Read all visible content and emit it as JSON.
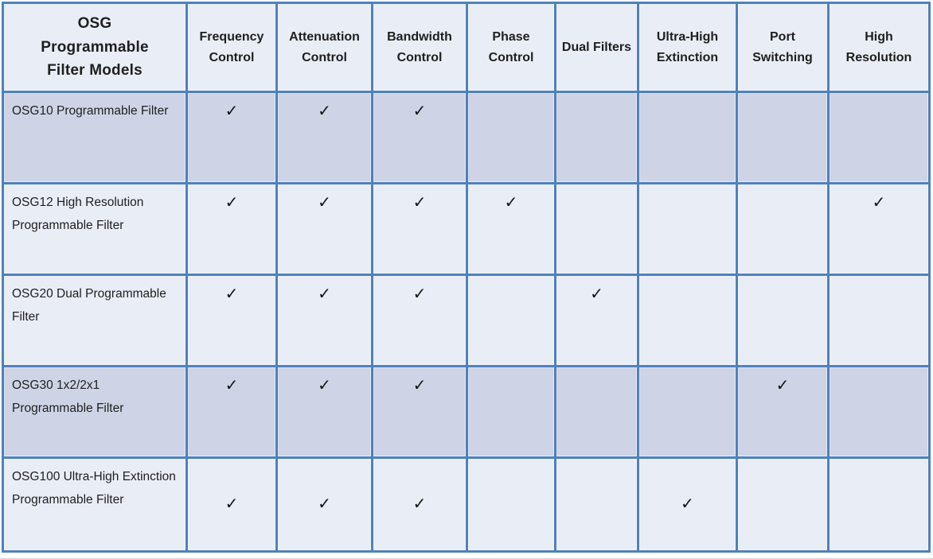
{
  "table": {
    "corner_header": "OSG\nProgrammable\nFilter Models",
    "feature_columns": [
      "Frequency Control",
      "Attenuation Control",
      "Bandwidth Control",
      "Phase Control",
      "Dual Filters",
      "Ultra-High Extinction",
      "Port Switching",
      "High Resolution"
    ],
    "check_glyph": "✓",
    "rows": [
      {
        "model": "OSG10 Programmable Filter",
        "shaded": true,
        "features": [
          true,
          true,
          true,
          false,
          false,
          false,
          false,
          false
        ]
      },
      {
        "model": "OSG12 High Resolution Programmable Filter",
        "shaded": false,
        "features": [
          true,
          true,
          true,
          true,
          false,
          false,
          false,
          true
        ]
      },
      {
        "model": "OSG20 Dual Programmable Filter",
        "shaded": false,
        "features": [
          true,
          true,
          true,
          false,
          true,
          false,
          false,
          false
        ]
      },
      {
        "model": "OSG30 1x2/2x1 Programmable Filter",
        "shaded": true,
        "features": [
          true,
          true,
          true,
          false,
          false,
          false,
          true,
          false
        ]
      },
      {
        "model": "OSG100 Ultra-High Extinction Programmable Filter",
        "shaded": false,
        "features": [
          true,
          true,
          true,
          false,
          false,
          true,
          false,
          false
        ]
      }
    ],
    "colors": {
      "grid_blue": "#4f81bd",
      "row_shaded": "#ced4e6",
      "row_light": "#e9edf6",
      "header_fill": "#e9edf6",
      "text": "#1f1f1f"
    }
  }
}
